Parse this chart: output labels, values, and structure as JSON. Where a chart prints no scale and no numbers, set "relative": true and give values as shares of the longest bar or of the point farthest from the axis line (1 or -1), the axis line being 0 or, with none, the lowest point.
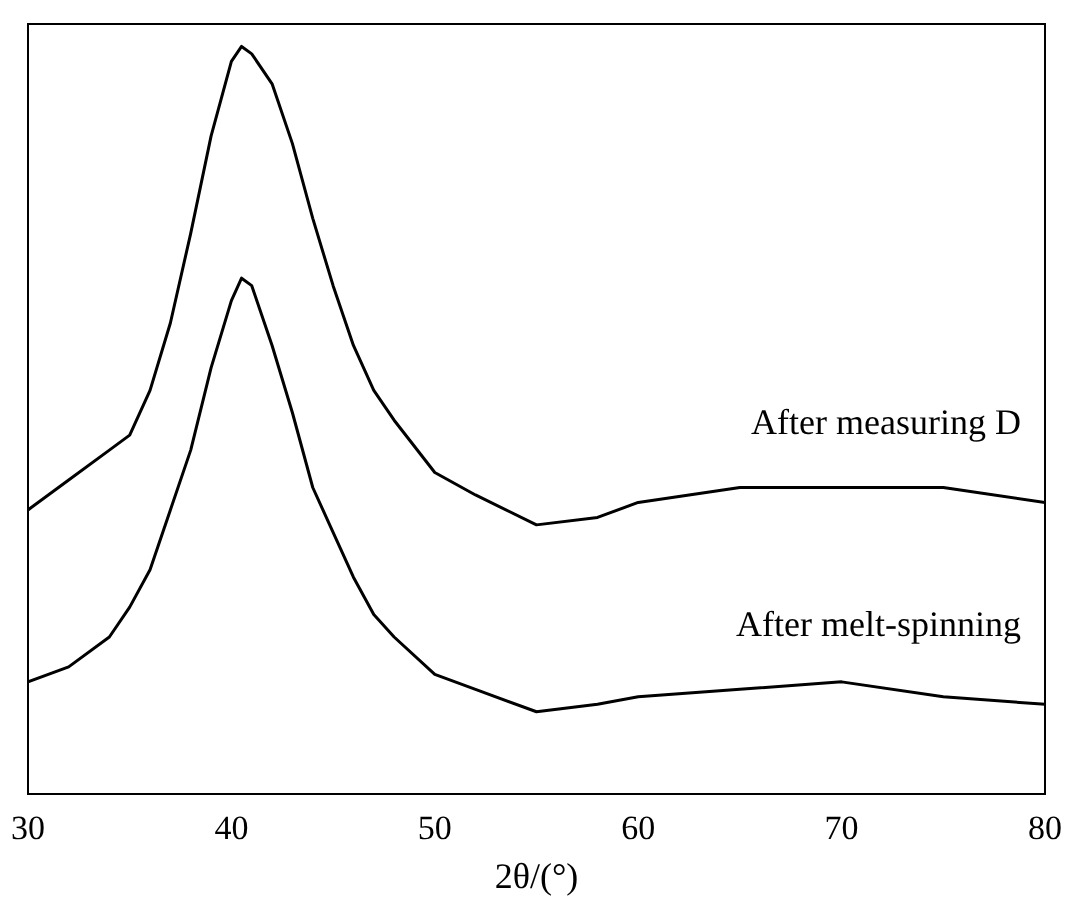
{
  "chart_data": {
    "type": "line",
    "relative": true,
    "xlabel": "2θ/(°)",
    "x": [
      30,
      32,
      34,
      35,
      36,
      37,
      38,
      39,
      40,
      40.5,
      41,
      42,
      43,
      44,
      45,
      46,
      47,
      48,
      50,
      52,
      55,
      58,
      60,
      65,
      70,
      75,
      80
    ],
    "xlim": [
      30,
      80
    ],
    "xticks": [
      30,
      40,
      50,
      60,
      70,
      80
    ],
    "grid": false,
    "legend": false,
    "marker": "none",
    "line_style": "solid",
    "series": [
      {
        "name": "After measuring D",
        "color": "#000000",
        "values": [
          0.38,
          0.42,
          0.46,
          0.48,
          0.54,
          0.63,
          0.75,
          0.88,
          0.98,
          1,
          0.99,
          0.95,
          0.87,
          0.77,
          0.68,
          0.6,
          0.54,
          0.5,
          0.43,
          0.4,
          0.36,
          0.37,
          0.39,
          0.41,
          0.41,
          0.41,
          0.39
        ]
      },
      {
        "name": "After melt-spinning",
        "color": "#000000",
        "values": [
          0.15,
          0.17,
          0.21,
          0.25,
          0.3,
          0.38,
          0.46,
          0.57,
          0.66,
          0.69,
          0.68,
          0.6,
          0.51,
          0.41,
          0.35,
          0.29,
          0.24,
          0.21,
          0.16,
          0.14,
          0.11,
          0.12,
          0.13,
          0.14,
          0.15,
          0.13,
          0.12
        ]
      }
    ]
  }
}
